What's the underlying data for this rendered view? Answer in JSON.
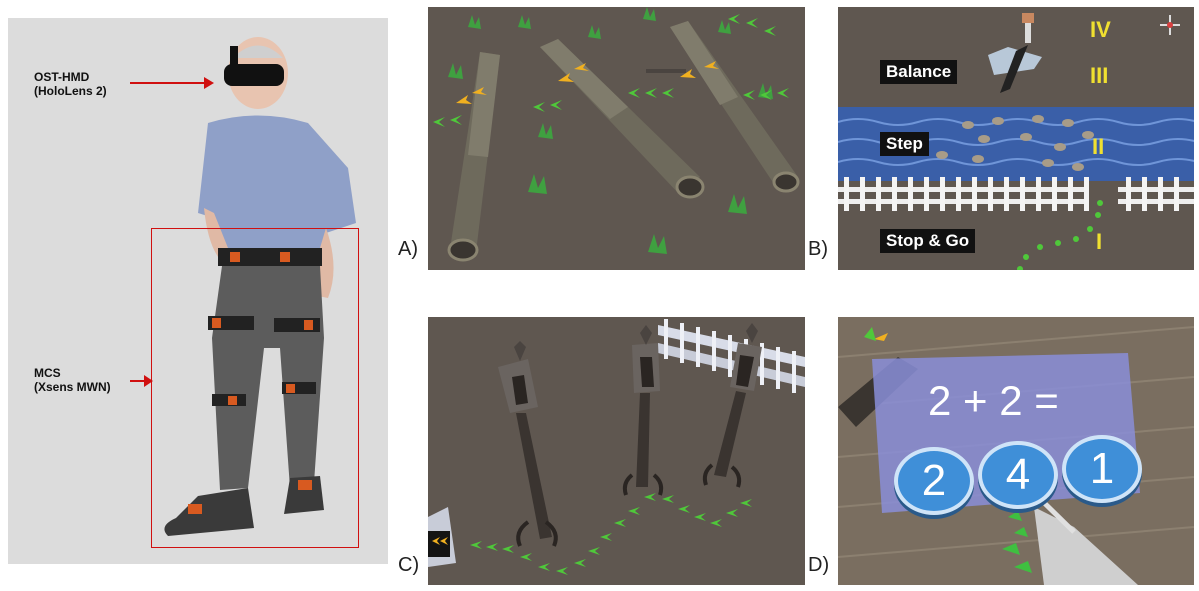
{
  "left": {
    "hmd_label": [
      "OST-HMD",
      "(HoloLens 2)"
    ],
    "mcs_label": [
      "MCS",
      "(Xsens MWN)"
    ]
  },
  "panels": {
    "a": {
      "label": "A)"
    },
    "b": {
      "label": "B)",
      "tags": {
        "balance": "Balance",
        "step": "Step",
        "stop_go": "Stop & Go"
      },
      "roman": {
        "iv": "IV",
        "iii": "III",
        "ii": "II",
        "i": "I"
      }
    },
    "c": {
      "label": "C)"
    },
    "d": {
      "label": "D)",
      "equation": "2 + 2 =",
      "answers": [
        "2",
        "4",
        "1"
      ]
    }
  },
  "colors": {
    "ground": "#5f5750",
    "water": "#3a5fa8",
    "arrow_green": "#4fc83a",
    "arrow_yellow": "#f0b020",
    "annotation_red": "#d01010",
    "button_blue": "#3f8fd8",
    "quiz_panel": "#8a8ed8"
  }
}
